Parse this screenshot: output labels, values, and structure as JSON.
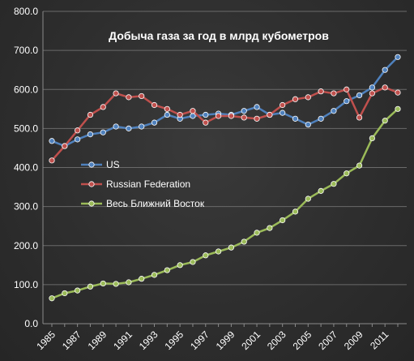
{
  "chart_data": {
    "type": "line",
    "title": "Добыча газа за год в млрд кубометров",
    "xlabel": "",
    "ylabel": "",
    "x": [
      1985,
      1986,
      1987,
      1988,
      1989,
      1990,
      1991,
      1992,
      1993,
      1994,
      1995,
      1996,
      1997,
      1998,
      1999,
      2000,
      2001,
      2002,
      2003,
      2004,
      2005,
      2006,
      2007,
      2008,
      2009,
      2010,
      2011,
      2012
    ],
    "x_tick_labels": [
      "1985",
      "1987",
      "1989",
      "1991",
      "1993",
      "1995",
      "1997",
      "1999",
      "2001",
      "2003",
      "2005",
      "2007",
      "2009",
      "2011"
    ],
    "y_tick_labels": [
      "0.0",
      "100.0",
      "200.0",
      "300.0",
      "400.0",
      "500.0",
      "600.0",
      "700.0",
      "800.0"
    ],
    "ylim": [
      0,
      800
    ],
    "grid": true,
    "legend_position": "left-center",
    "series": [
      {
        "name": "US",
        "color": "#4f81bd",
        "values": [
          468,
          455,
          472,
          485,
          490,
          505,
          500,
          505,
          515,
          535,
          525,
          532,
          535,
          538,
          535,
          545,
          555,
          535,
          540,
          525,
          510,
          525,
          545,
          570,
          585,
          605,
          650,
          683
        ]
      },
      {
        "name": "Russian Federation",
        "color": "#c0504d",
        "values": [
          418,
          455,
          495,
          535,
          555,
          590,
          580,
          583,
          560,
          550,
          535,
          545,
          515,
          532,
          532,
          528,
          525,
          535,
          560,
          575,
          580,
          595,
          590,
          600,
          528,
          590,
          605,
          592
        ]
      },
      {
        "name": "Весь Ближний Восток",
        "color": "#9bbb59",
        "values": [
          65,
          78,
          85,
          95,
          103,
          102,
          106,
          115,
          125,
          137,
          150,
          158,
          175,
          185,
          195,
          210,
          233,
          245,
          265,
          287,
          320,
          340,
          358,
          385,
          405,
          475,
          520,
          550
        ]
      }
    ]
  }
}
